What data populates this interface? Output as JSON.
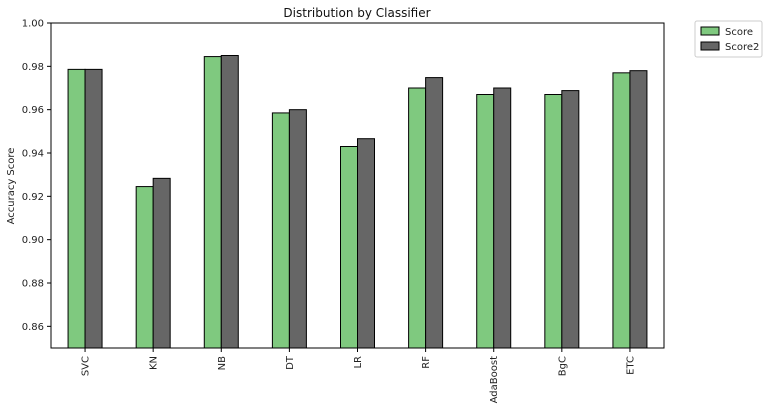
{
  "chart_data": {
    "type": "bar",
    "title": "Distribution by Classifier",
    "xlabel": "",
    "ylabel": "Accuracy Score",
    "categories": [
      "SVC",
      "KN",
      "NB",
      "DT",
      "LR",
      "RF",
      "AdaBoost",
      "BgC",
      "ETC"
    ],
    "series": [
      {
        "name": "Score",
        "color": "#7fc97f",
        "values": [
          0.9786,
          0.9245,
          0.9845,
          0.9585,
          0.943,
          0.97,
          0.967,
          0.967,
          0.977
        ]
      },
      {
        "name": "Score2",
        "color": "#666666",
        "values": [
          0.9786,
          0.9283,
          0.985,
          0.96,
          0.9466,
          0.9748,
          0.97,
          0.9688,
          0.978
        ]
      }
    ],
    "ylim": [
      0.85,
      1.0
    ],
    "yticks": [
      "0.86",
      "0.88",
      "0.90",
      "0.92",
      "0.94",
      "0.96",
      "0.98",
      "1.00"
    ],
    "grid": false,
    "legend_position": "outside-top-right"
  }
}
